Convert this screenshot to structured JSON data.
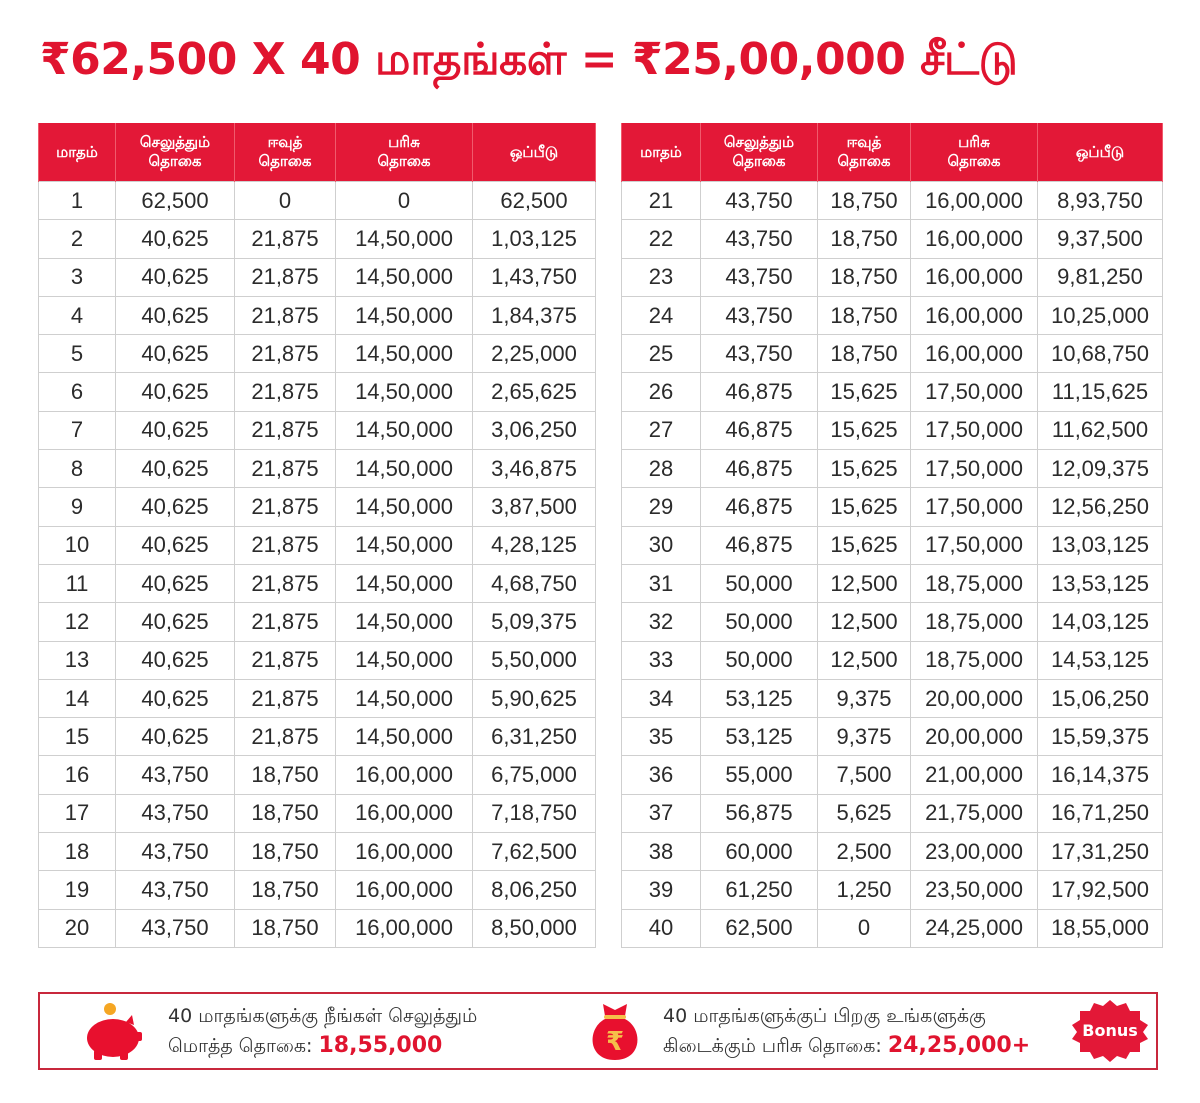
{
  "title": "₹62,500 X 40 மாதங்கள் =  ₹25,00,000 சீட்டு",
  "colors": {
    "accent": "#e31837",
    "title": "#e0142f",
    "border": "#cfcfcf",
    "text": "#2b2b2b"
  },
  "table": {
    "headers": [
      {
        "l1": "மாதம்",
        "l2": ""
      },
      {
        "l1": "செலுத்தும்",
        "l2": "தொகை"
      },
      {
        "l1": "ஈவுத்",
        "l2": "தொகை"
      },
      {
        "l1": "பரிசு",
        "l2": "தொகை"
      },
      {
        "l1": "ஒப்பீடு",
        "l2": ""
      }
    ],
    "left_rows": [
      [
        "1",
        "62,500",
        "0",
        "0",
        "62,500"
      ],
      [
        "2",
        "40,625",
        "21,875",
        "14,50,000",
        "1,03,125"
      ],
      [
        "3",
        "40,625",
        "21,875",
        "14,50,000",
        "1,43,750"
      ],
      [
        "4",
        "40,625",
        "21,875",
        "14,50,000",
        "1,84,375"
      ],
      [
        "5",
        "40,625",
        "21,875",
        "14,50,000",
        "2,25,000"
      ],
      [
        "6",
        "40,625",
        "21,875",
        "14,50,000",
        "2,65,625"
      ],
      [
        "7",
        "40,625",
        "21,875",
        "14,50,000",
        "3,06,250"
      ],
      [
        "8",
        "40,625",
        "21,875",
        "14,50,000",
        "3,46,875"
      ],
      [
        "9",
        "40,625",
        "21,875",
        "14,50,000",
        "3,87,500"
      ],
      [
        "10",
        "40,625",
        "21,875",
        "14,50,000",
        "4,28,125"
      ],
      [
        "11",
        "40,625",
        "21,875",
        "14,50,000",
        "4,68,750"
      ],
      [
        "12",
        "40,625",
        "21,875",
        "14,50,000",
        "5,09,375"
      ],
      [
        "13",
        "40,625",
        "21,875",
        "14,50,000",
        "5,50,000"
      ],
      [
        "14",
        "40,625",
        "21,875",
        "14,50,000",
        "5,90,625"
      ],
      [
        "15",
        "40,625",
        "21,875",
        "14,50,000",
        "6,31,250"
      ],
      [
        "16",
        "43,750",
        "18,750",
        "16,00,000",
        "6,75,000"
      ],
      [
        "17",
        "43,750",
        "18,750",
        "16,00,000",
        "7,18,750"
      ],
      [
        "18",
        "43,750",
        "18,750",
        "16,00,000",
        "7,62,500"
      ],
      [
        "19",
        "43,750",
        "18,750",
        "16,00,000",
        "8,06,250"
      ],
      [
        "20",
        "43,750",
        "18,750",
        "16,00,000",
        "8,50,000"
      ]
    ],
    "right_rows": [
      [
        "21",
        "43,750",
        "18,750",
        "16,00,000",
        "8,93,750"
      ],
      [
        "22",
        "43,750",
        "18,750",
        "16,00,000",
        "9,37,500"
      ],
      [
        "23",
        "43,750",
        "18,750",
        "16,00,000",
        "9,81,250"
      ],
      [
        "24",
        "43,750",
        "18,750",
        "16,00,000",
        "10,25,000"
      ],
      [
        "25",
        "43,750",
        "18,750",
        "16,00,000",
        "10,68,750"
      ],
      [
        "26",
        "46,875",
        "15,625",
        "17,50,000",
        "11,15,625"
      ],
      [
        "27",
        "46,875",
        "15,625",
        "17,50,000",
        "11,62,500"
      ],
      [
        "28",
        "46,875",
        "15,625",
        "17,50,000",
        "12,09,375"
      ],
      [
        "29",
        "46,875",
        "15,625",
        "17,50,000",
        "12,56,250"
      ],
      [
        "30",
        "46,875",
        "15,625",
        "17,50,000",
        "13,03,125"
      ],
      [
        "31",
        "50,000",
        "12,500",
        "18,75,000",
        "13,53,125"
      ],
      [
        "32",
        "50,000",
        "12,500",
        "18,75,000",
        "14,03,125"
      ],
      [
        "33",
        "50,000",
        "12,500",
        "18,75,000",
        "14,53,125"
      ],
      [
        "34",
        "53,125",
        "9,375",
        "20,00,000",
        "15,06,250"
      ],
      [
        "35",
        "53,125",
        "9,375",
        "20,00,000",
        "15,59,375"
      ],
      [
        "36",
        "55,000",
        "7,500",
        "21,00,000",
        "16,14,375"
      ],
      [
        "37",
        "56,875",
        "5,625",
        "21,75,000",
        "16,71,250"
      ],
      [
        "38",
        "60,000",
        "2,500",
        "23,00,000",
        "17,31,250"
      ],
      [
        "39",
        "61,250",
        "1,250",
        "23,50,000",
        "17,92,500"
      ],
      [
        "40",
        "62,500",
        "0",
        "24,25,000",
        "18,55,000"
      ]
    ]
  },
  "footer": {
    "paid": {
      "icon": "piggy-bank-icon",
      "line1": "40 மாதங்களுக்கு நீங்கள் செலுத்தும்",
      "line2_label": "மொத்த தொகை: ",
      "amount": "18,55,000"
    },
    "prize": {
      "icon": "money-bag-icon",
      "line1": "40 மாதங்களுக்குப் பிறகு உங்களுக்கு",
      "line2_label": "கிடைக்கும் பரிசு தொகை: ",
      "amount": "24,25,000+"
    },
    "badge": "Bonus"
  }
}
